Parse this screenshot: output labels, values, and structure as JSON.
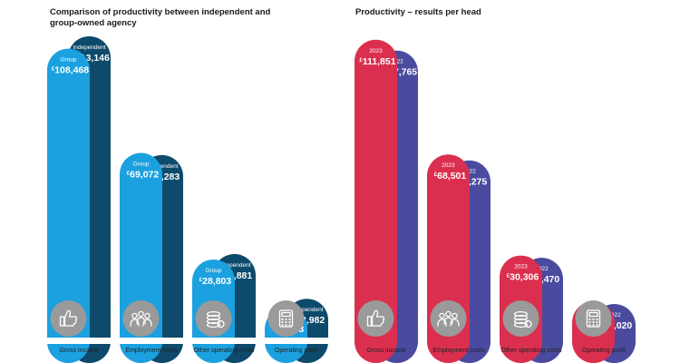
{
  "chart_data": [
    {
      "type": "bar",
      "title": "Comparison of productivity between independent and group-owned agency",
      "categories": [
        "Gross income",
        "Employment costs",
        "Other operating costs",
        "Operating profit"
      ],
      "currency_symbol": "£",
      "series": [
        {
          "name": "Group",
          "values": [
            108468,
            69072,
            28803,
            10593
          ],
          "labels": [
            "108,468",
            "69,072",
            "28,803",
            "10,593"
          ],
          "color": "#1ba0e0"
        },
        {
          "name": "Independent",
          "values": [
            113146,
            68283,
            30881,
            13982
          ],
          "labels": [
            "113,146",
            "68,283",
            "30,881",
            "13,982"
          ],
          "color": "#0d4a6b"
        }
      ],
      "icons": [
        "thumbs-up-icon",
        "people-icon",
        "coins-icon",
        "calculator-icon"
      ],
      "icon_circle_color": "#9a9a9a"
    },
    {
      "type": "bar",
      "title": "Productivity – results per head",
      "categories": [
        "Gross income",
        "Employment costs",
        "Other operating costs",
        "Operating profit"
      ],
      "currency_symbol": "£",
      "series": [
        {
          "name": "2023",
          "values": [
            111851,
            68501,
            30306,
            13044
          ],
          "labels": [
            "111,851",
            "68,501",
            "30,306",
            "13,044"
          ],
          "color": "#db2f4f"
        },
        {
          "name": "2022",
          "values": [
            107765,
            66275,
            29470,
            12020
          ],
          "labels": [
            "107,765",
            "66,275",
            "29,470",
            "12,020"
          ],
          "color": "#4a4a9e"
        }
      ],
      "icons": [
        "thumbs-up-icon",
        "people-icon",
        "coins-icon",
        "calculator-icon"
      ],
      "icon_circle_color": "#9a9a9a"
    }
  ]
}
